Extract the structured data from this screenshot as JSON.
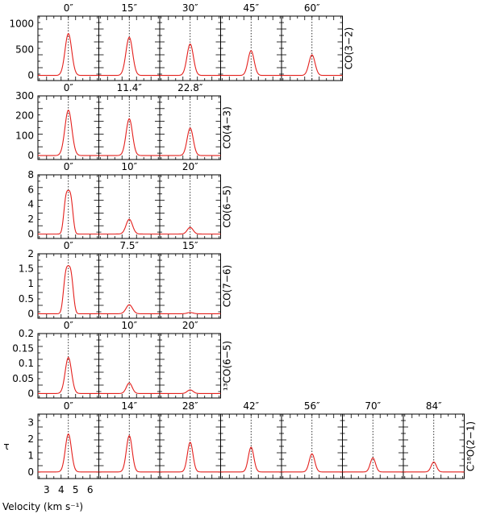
{
  "chart_data": {
    "type": "line",
    "xlabel": "Velocity (km s⁻¹)",
    "x_ticks": [
      "3",
      "4",
      "5",
      "6"
    ],
    "tau_label": "τ",
    "rows": [
      {
        "label": "CO(3−2)",
        "yticks": [
          "0",
          "500",
          "1000"
        ],
        "ylim": [
          -100,
          1150
        ],
        "offsets": [
          "0″",
          "15″",
          "30″",
          "45″",
          "60″"
        ],
        "peaks": [
          810,
          740,
          610,
          480,
          400
        ],
        "widths": [
          0.23,
          0.23,
          0.22,
          0.21,
          0.21
        ]
      },
      {
        "label": "CO(4−3)",
        "yticks": [
          "0",
          "100",
          "200",
          "300"
        ],
        "ylim": [
          -20,
          300
        ],
        "offsets": [
          "0″",
          "11.4″",
          "22.8″"
        ],
        "peaks": [
          228,
          185,
          138
        ],
        "widths": [
          0.24,
          0.22,
          0.21
        ]
      },
      {
        "label": "CO(6−5)",
        "yticks": [
          "0",
          "2",
          "4",
          "6",
          "8"
        ],
        "ylim": [
          -0.6,
          8
        ],
        "offsets": [
          "0″",
          "10″",
          "20″"
        ],
        "peaks": [
          5.9,
          2.0,
          0.9
        ],
        "widths": [
          0.28,
          0.22,
          0.2
        ],
        "flat": [
          true,
          false,
          false
        ]
      },
      {
        "label": "CO(7−6)",
        "yticks": [
          "0",
          "0.5",
          "1",
          "1.5",
          "2"
        ],
        "ylim": [
          -0.15,
          2
        ],
        "offsets": [
          "0″",
          "7.5″",
          "15″"
        ],
        "peaks": [
          1.6,
          0.3,
          0.04
        ],
        "widths": [
          0.3,
          0.22,
          0.2
        ],
        "flat": [
          true,
          false,
          false
        ]
      },
      {
        "label": "¹³CO(6−5)",
        "yticks": [
          "0",
          "0.05",
          "0.1",
          "0.15",
          "0.2"
        ],
        "ylim": [
          -0.015,
          0.2
        ],
        "offsets": [
          "0″",
          "10″",
          "20″"
        ],
        "peaks": [
          0.12,
          0.035,
          0.012
        ],
        "widths": [
          0.22,
          0.2,
          0.2
        ]
      },
      {
        "label": "C¹⁸O(2−1)",
        "yticks": [
          "0",
          "1",
          "2",
          "3"
        ],
        "ylim": [
          -0.4,
          3.5
        ],
        "offsets": [
          "0″",
          "14″",
          "28″",
          "42″",
          "56″",
          "70″",
          "84″"
        ],
        "peaks": [
          2.3,
          2.2,
          1.8,
          1.5,
          1.1,
          0.85,
          0.6
        ],
        "widths": [
          0.21,
          0.2,
          0.19,
          0.19,
          0.19,
          0.18,
          0.18
        ]
      }
    ],
    "x_range": [
      2.4,
      6.6
    ],
    "line_center": 4.5,
    "line_color": "#e4201d"
  }
}
